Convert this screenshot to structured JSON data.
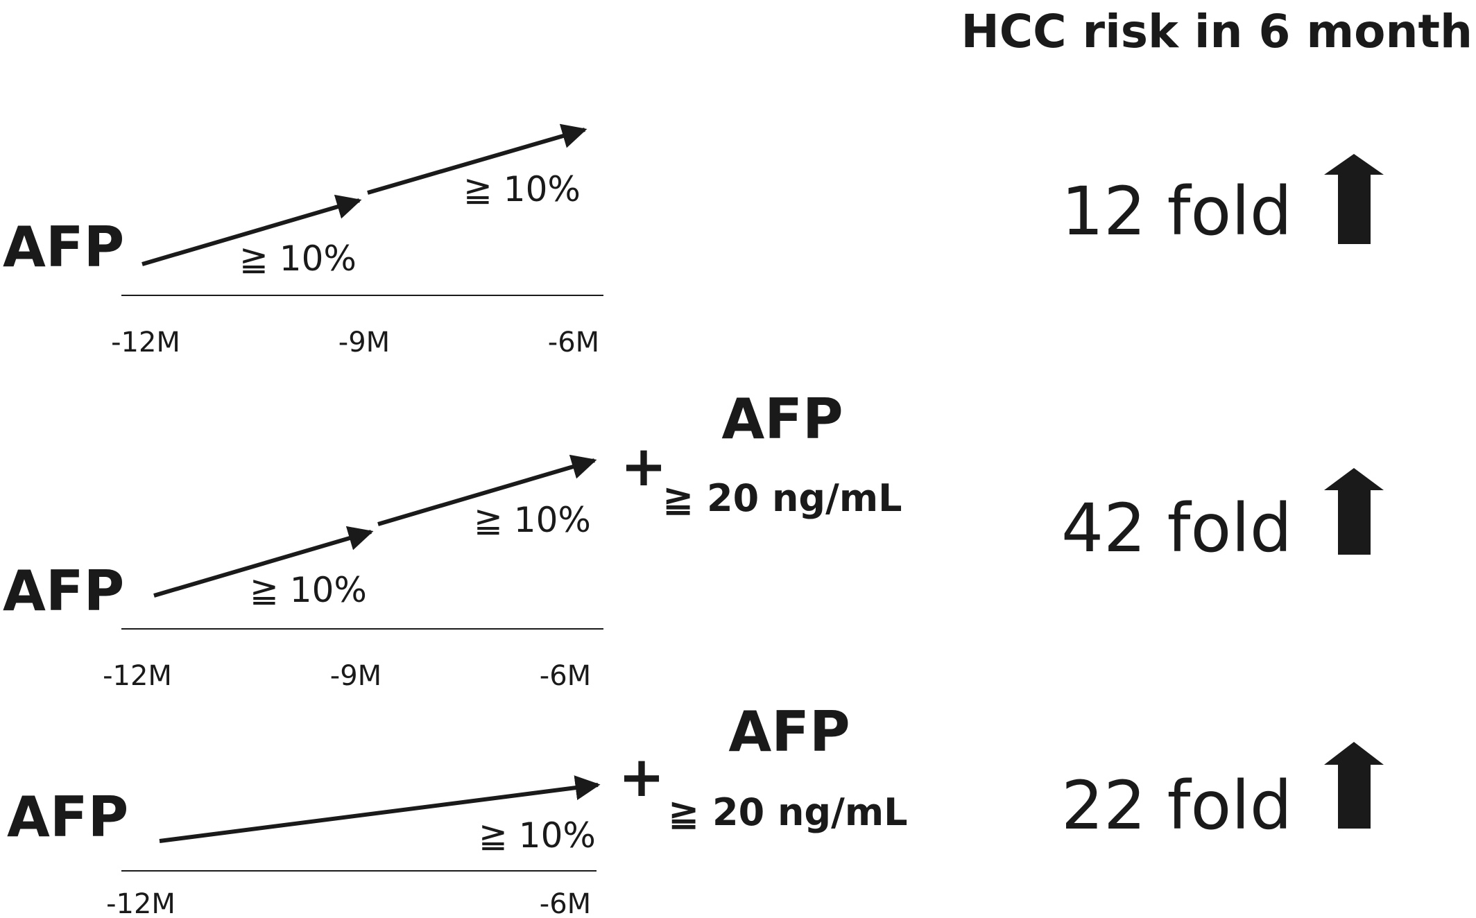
{
  "header": {
    "title": "HCC risk in 6 month"
  },
  "panels": [
    {
      "label": "AFP",
      "segments": [
        {
          "change": "≧ 10%"
        },
        {
          "change": "≧ 10%"
        }
      ],
      "ticks": [
        "-12M",
        "-9M",
        "-6M"
      ],
      "extra": null,
      "risk": "12 fold",
      "risk_icon": "up-arrow-icon"
    },
    {
      "label": "AFP",
      "segments": [
        {
          "change": "≧ 10%"
        },
        {
          "change": "≧ 10%"
        }
      ],
      "ticks": [
        "-12M",
        "-9M",
        "-6M"
      ],
      "extra": {
        "plus": "+",
        "label": "AFP",
        "threshold": "≧ 20 ng/mL"
      },
      "risk": "42 fold",
      "risk_icon": "up-arrow-icon"
    },
    {
      "label": "AFP",
      "segments": [
        {
          "change": "≧ 10%"
        }
      ],
      "ticks": [
        "-12M",
        "-6M"
      ],
      "extra": {
        "plus": "+",
        "label": "AFP",
        "threshold": "≧ 20 ng/mL"
      },
      "risk": "22 fold",
      "risk_icon": "up-arrow-icon"
    }
  ],
  "colors": {
    "ink": "#1a1a1a",
    "background": "#ffffff"
  }
}
